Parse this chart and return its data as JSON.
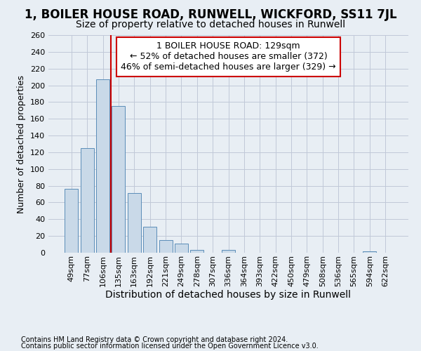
{
  "title": "1, BOILER HOUSE ROAD, RUNWELL, WICKFORD, SS11 7JL",
  "subtitle": "Size of property relative to detached houses in Runwell",
  "xlabel": "Distribution of detached houses by size in Runwell",
  "ylabel": "Number of detached properties",
  "categories": [
    "49sqm",
    "77sqm",
    "106sqm",
    "135sqm",
    "163sqm",
    "192sqm",
    "221sqm",
    "249sqm",
    "278sqm",
    "307sqm",
    "336sqm",
    "364sqm",
    "393sqm",
    "422sqm",
    "450sqm",
    "479sqm",
    "508sqm",
    "536sqm",
    "565sqm",
    "594sqm",
    "622sqm"
  ],
  "values": [
    76,
    125,
    207,
    175,
    71,
    31,
    15,
    11,
    3,
    0,
    3,
    0,
    0,
    0,
    0,
    0,
    0,
    0,
    0,
    2,
    0
  ],
  "bar_color": "#c9d9e8",
  "bar_edge_color": "#5b8db8",
  "grid_color": "#c0c8d8",
  "background_color": "#e8eef4",
  "annotation_text_line1": "1 BOILER HOUSE ROAD: 129sqm",
  "annotation_text_line2": "← 52% of detached houses are smaller (372)",
  "annotation_text_line3": "46% of semi-detached houses are larger (329) →",
  "annotation_box_color": "#ffffff",
  "annotation_box_edge_color": "#cc0000",
  "ref_line_color": "#cc0000",
  "ref_line_x": 2.5,
  "ylim": [
    0,
    260
  ],
  "yticks": [
    0,
    20,
    40,
    60,
    80,
    100,
    120,
    140,
    160,
    180,
    200,
    220,
    240,
    260
  ],
  "footer_line1": "Contains HM Land Registry data © Crown copyright and database right 2024.",
  "footer_line2": "Contains public sector information licensed under the Open Government Licence v3.0.",
  "title_fontsize": 12,
  "subtitle_fontsize": 10,
  "xlabel_fontsize": 10,
  "ylabel_fontsize": 9,
  "tick_fontsize": 8,
  "annotation_fontsize": 9,
  "footer_fontsize": 7
}
